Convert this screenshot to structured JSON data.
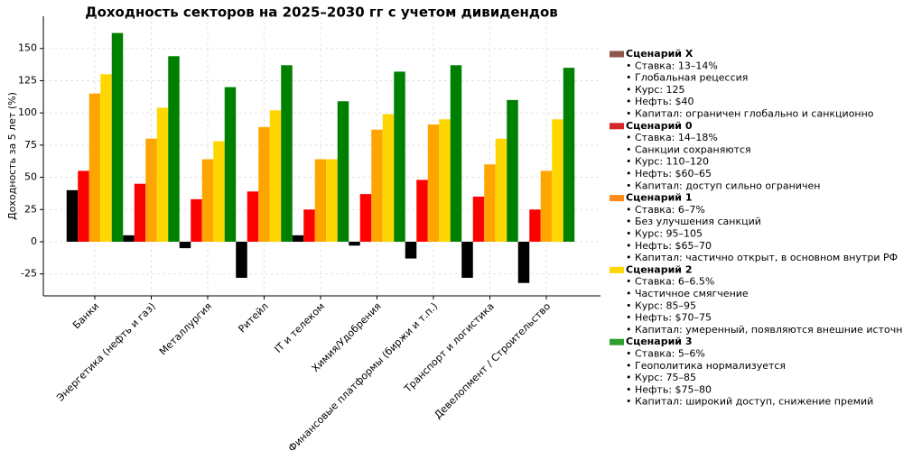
{
  "chart_data": {
    "type": "bar",
    "title": "Доходность секторов на 2025–2030 гг с учетом дивидендов",
    "y_label": "Доходность за 5 лет (%)",
    "categories": [
      "Банки",
      "Энергетика (нефть и газ)",
      "Металлургия",
      "Ритейл",
      "IT и телеком",
      "Химия/Удобрения",
      "Финансовые платформы (биржи и т.п.)",
      "Транспорт и логистика",
      "Девелопмент / Строительство"
    ],
    "series": [
      {
        "name": "Сценарий X",
        "color": "#000000",
        "legend_color": "#8c564b",
        "values": [
          40,
          5,
          -5,
          -28,
          5,
          -3,
          -13,
          -28,
          -32
        ],
        "notes": [
          "• Ставка: 13–14%",
          "• Глобальная рецессия",
          "• Курс: 125",
          "• Нефть: $40",
          "• Капитал: ограничен глобально и санкционно"
        ]
      },
      {
        "name": "Сценарий 0",
        "color": "#ff0000",
        "legend_color": "#d62728",
        "values": [
          55,
          45,
          33,
          39,
          25,
          37,
          48,
          35,
          25
        ],
        "notes": [
          "• Ставка: 14–18%",
          "• Санкции сохраняются",
          "• Курс: 110–120",
          "• Нефть: $60–65",
          "• Капитал: доступ сильно ограничен"
        ]
      },
      {
        "name": "Сценарий 1",
        "color": "#ffa500",
        "legend_color": "#ff8c1a",
        "values": [
          115,
          80,
          64,
          89,
          64,
          87,
          91,
          60,
          55
        ],
        "notes": [
          "• Ставка: 6–7%",
          "• Без улучшения санкций",
          "• Курс: 95–105",
          "• Нефть: $65–70",
          "• Капитал: частично открыт, в основном внутри РФ"
        ]
      },
      {
        "name": "Сценарий 2",
        "color": "#ffd700",
        "legend_color": "#ffd700",
        "values": [
          130,
          104,
          78,
          102,
          64,
          99,
          95,
          80,
          95
        ],
        "notes": [
          "• Ставка: 6–6.5%",
          "• Частичное смягчение",
          "• Курс: 85–95",
          "• Нефть: $70–75",
          "• Капитал: умеренный, появляются внешние источники"
        ]
      },
      {
        "name": "Сценарий 3",
        "color": "#008000",
        "legend_color": "#2ca02c",
        "values": [
          162,
          144,
          120,
          137,
          109,
          132,
          137,
          110,
          135
        ],
        "notes": [
          "• Ставка: 5–6%",
          "• Геополитика нормализуется",
          "• Курс: 75–85",
          "• Нефть: $75–80",
          "• Капитал: широкий доступ, снижение премий"
        ]
      }
    ],
    "ylim": [
      -42,
      175
    ],
    "yticks": [
      -25,
      0,
      25,
      50,
      75,
      100,
      125,
      150
    ],
    "grid": true
  }
}
